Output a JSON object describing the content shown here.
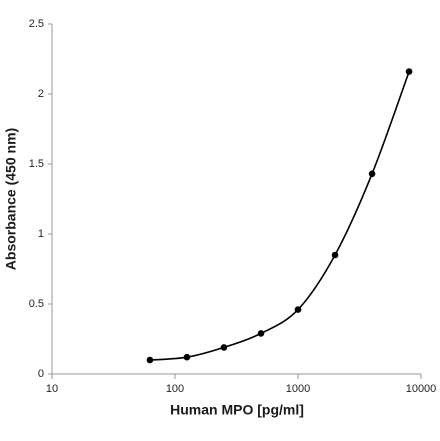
{
  "chart_data": {
    "type": "line",
    "xlabel": "Human MPO [pg/ml]",
    "ylabel": "Absorbance (450 nm)",
    "x": [
      62.5,
      125,
      250,
      500,
      1000,
      2000,
      4000,
      8000
    ],
    "series": [
      {
        "color": "#000000",
        "values": [
          0.1,
          0.12,
          0.19,
          0.29,
          0.46,
          0.85,
          1.43,
          2.16
        ]
      }
    ],
    "xscale": "log",
    "xlim": [
      10,
      10000
    ],
    "xticks": [
      10,
      100,
      1000,
      10000
    ],
    "ylim": [
      0,
      2.5
    ],
    "yticks": [
      0,
      0.5,
      1,
      1.5,
      2,
      2.5
    ]
  }
}
